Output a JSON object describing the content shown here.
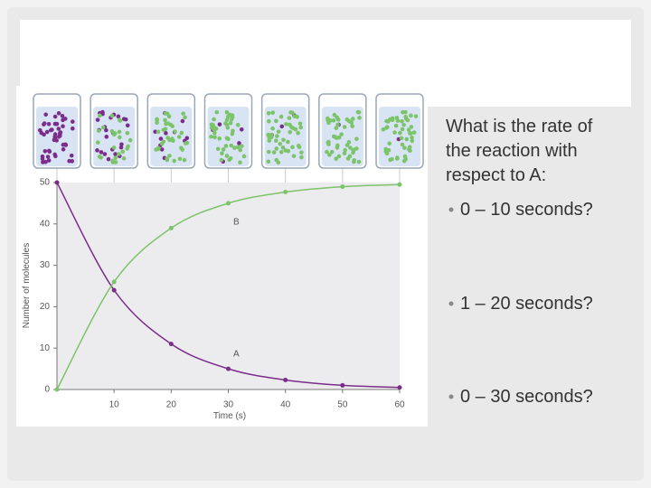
{
  "chart_data": {
    "type": "line",
    "x": [
      0,
      10,
      20,
      30,
      40,
      50,
      60
    ],
    "series": [
      {
        "name": "A",
        "color": "#7b2d8b",
        "values": [
          50,
          24,
          11,
          5,
          2.3,
          1,
          0.5
        ]
      },
      {
        "name": "B",
        "color": "#7cc46a",
        "values": [
          0,
          26,
          39,
          45,
          47.7,
          49,
          49.5
        ]
      }
    ],
    "xlabel": "Time (s)",
    "ylabel": "Number of molecules",
    "xlim": [
      0,
      60
    ],
    "xticks": [
      10,
      20,
      30,
      40,
      50,
      60
    ],
    "ylim": [
      0,
      50
    ],
    "yticks": [
      0,
      10,
      20,
      30,
      40,
      50
    ]
  },
  "slide": {
    "question": [
      "What is the rate of",
      "the reaction with",
      "respect to A:"
    ],
    "bullets": [
      "0 – 10 seconds?",
      "1 – 20 seconds?",
      "0 – 30 seconds?"
    ]
  }
}
